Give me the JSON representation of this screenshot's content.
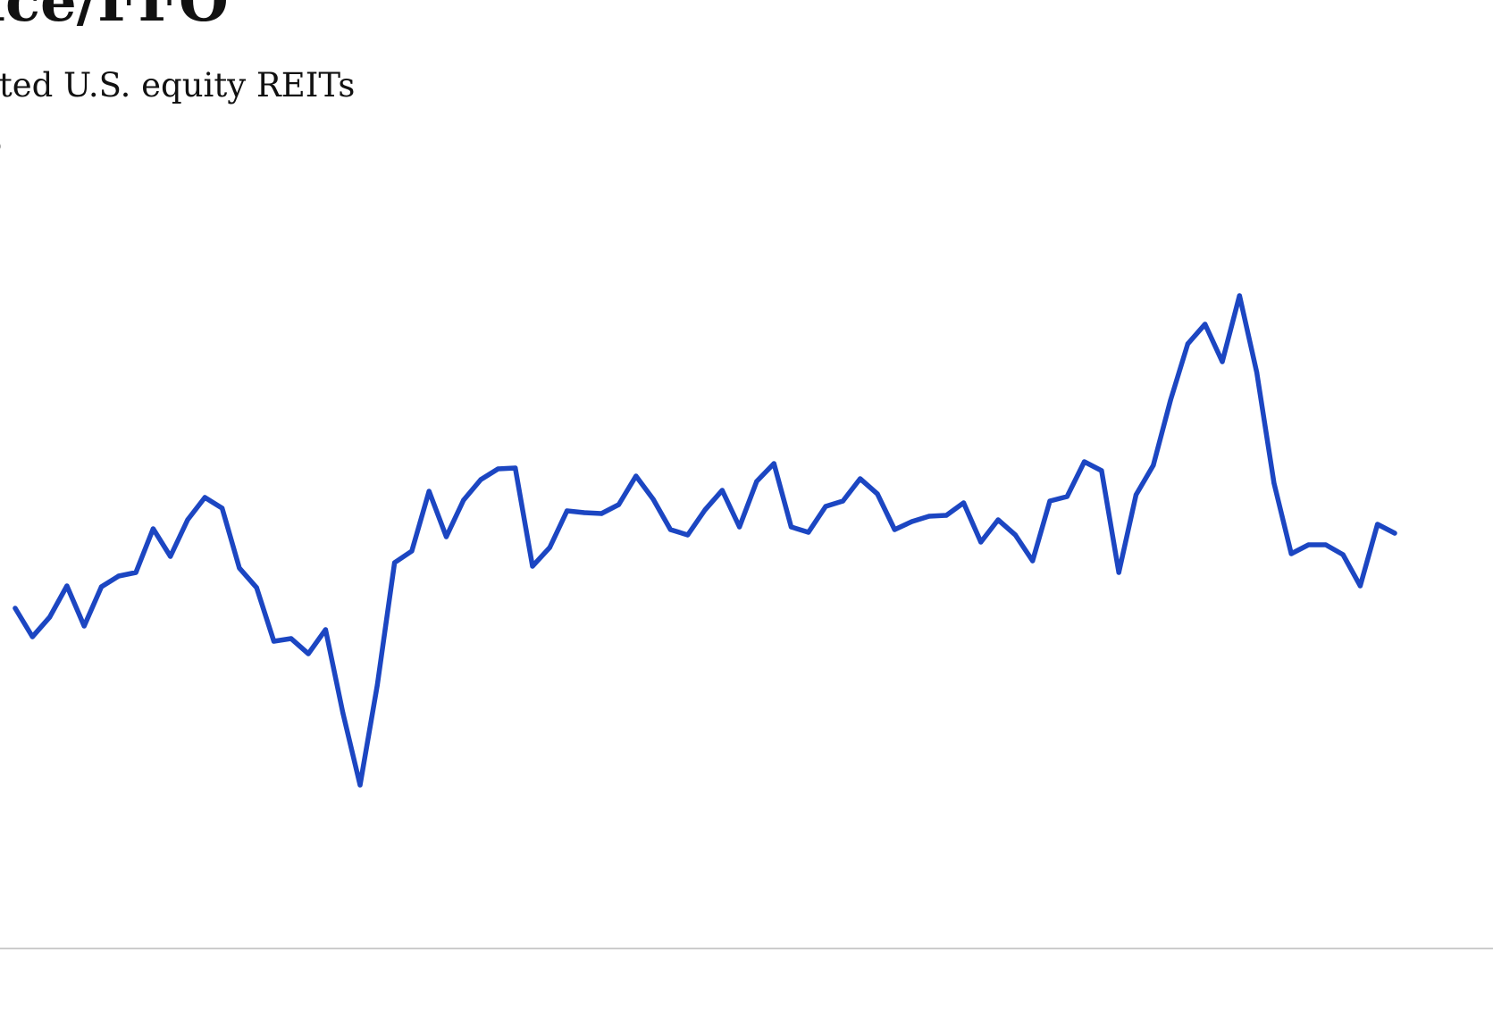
{
  "header": {
    "title": "rice/FFO",
    "subtitle": "isted U.S. equity REITs",
    "unit": "ɔ"
  },
  "colors": {
    "line": "#1c46c2",
    "baseline": "#bbbbbb"
  },
  "chart_data": {
    "type": "line",
    "title": "rice/FFO",
    "subtitle": "isted U.S. equity REITs",
    "xlabel": "",
    "ylabel": "",
    "grid": false,
    "legend": "none",
    "ylim": [
      0,
      1062
    ],
    "series": [
      {
        "values": [
          381,
          349,
          371,
          406,
          361,
          405,
          417,
          421,
          470,
          439,
          480,
          505,
          493,
          426,
          404,
          344,
          347,
          330,
          357,
          264,
          183,
          295,
          432,
          445,
          512,
          461,
          502,
          525,
          537,
          538,
          428,
          449,
          490,
          488,
          487,
          497,
          529,
          503,
          469,
          463,
          491,
          513,
          472,
          523,
          543,
          472,
          466,
          495,
          501,
          526,
          509,
          469,
          478,
          484,
          485,
          499,
          455,
          480,
          463,
          434,
          501,
          506,
          545,
          535,
          421,
          508,
          541,
          614,
          677,
          699,
          657,
          731,
          645,
          521,
          442,
          452,
          452,
          441,
          406,
          475,
          465
        ]
      }
    ]
  }
}
